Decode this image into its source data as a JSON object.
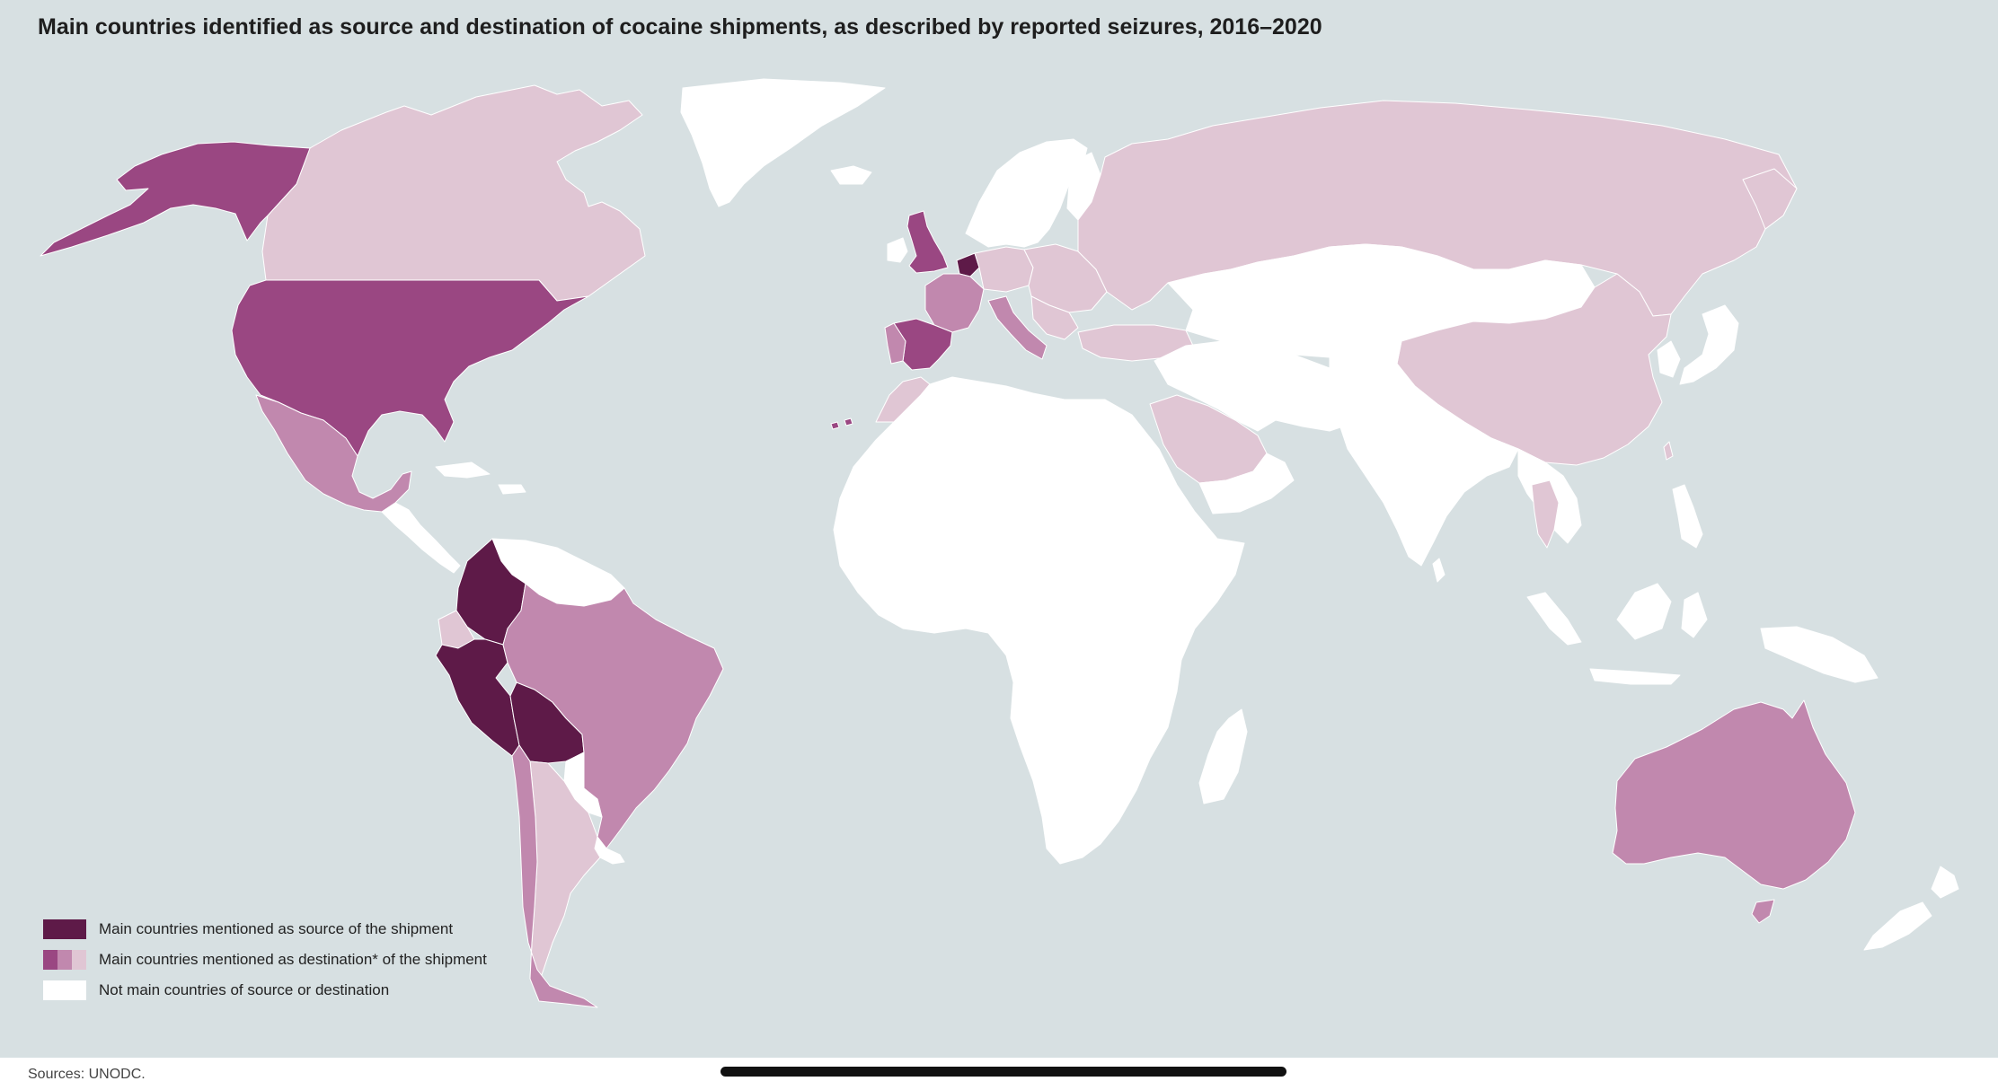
{
  "title": "Main countries identified as source and destination of cocaine shipments, as described by reported seizures, 2016–2020",
  "colors": {
    "ocean": "#d7e0e2",
    "source": "#5e1a48",
    "destination_high": "#9a4782",
    "destination_mid": "#c188ae",
    "destination_low": "#e0c6d4",
    "neither": "#ffffff",
    "landmass_base": "#fdfbfc"
  },
  "regions": [
    {
      "name": "Alaska (USA)",
      "category": "destination_high"
    },
    {
      "name": "Canada",
      "category": "destination_low"
    },
    {
      "name": "United States",
      "category": "destination_high"
    },
    {
      "name": "Mexico",
      "category": "destination_mid"
    },
    {
      "name": "Greenland",
      "category": "neither"
    },
    {
      "name": "Central America",
      "category": "neither"
    },
    {
      "name": "Colombia",
      "category": "source"
    },
    {
      "name": "Peru",
      "category": "source"
    },
    {
      "name": "Bolivia",
      "category": "source"
    },
    {
      "name": "Venezuela and Guianas",
      "category": "neither"
    },
    {
      "name": "Ecuador",
      "category": "destination_low"
    },
    {
      "name": "Brazil",
      "category": "destination_mid"
    },
    {
      "name": "Paraguay",
      "category": "neither"
    },
    {
      "name": "Uruguay",
      "category": "neither"
    },
    {
      "name": "Argentina",
      "category": "destination_low"
    },
    {
      "name": "Chile",
      "category": "destination_mid"
    },
    {
      "name": "United Kingdom",
      "category": "destination_high"
    },
    {
      "name": "Ireland",
      "category": "neither"
    },
    {
      "name": "Netherlands / Belgium",
      "category": "source"
    },
    {
      "name": "France",
      "category": "destination_mid"
    },
    {
      "name": "Spain",
      "category": "destination_high"
    },
    {
      "name": "Portugal",
      "category": "destination_mid"
    },
    {
      "name": "Italy",
      "category": "destination_mid"
    },
    {
      "name": "Germany",
      "category": "destination_low"
    },
    {
      "name": "Scandinavia",
      "category": "neither"
    },
    {
      "name": "Eastern Europe",
      "category": "destination_low"
    },
    {
      "name": "Russia",
      "category": "destination_low"
    },
    {
      "name": "Turkey",
      "category": "destination_low"
    },
    {
      "name": "Morocco",
      "category": "destination_low"
    },
    {
      "name": "Africa",
      "category": "neither"
    },
    {
      "name": "Middle East",
      "category": "neither"
    },
    {
      "name": "Saudi Arabia",
      "category": "destination_low"
    },
    {
      "name": "Central Asia / Mongolia",
      "category": "neither"
    },
    {
      "name": "India",
      "category": "neither"
    },
    {
      "name": "China",
      "category": "destination_low"
    },
    {
      "name": "Japan",
      "category": "neither"
    },
    {
      "name": "Thailand",
      "category": "destination_low"
    },
    {
      "name": "Indonesia",
      "category": "neither"
    },
    {
      "name": "Papua New Guinea",
      "category": "neither"
    },
    {
      "name": "Australia",
      "category": "destination_mid"
    },
    {
      "name": "New Zealand",
      "category": "neither"
    }
  ],
  "legend": [
    {
      "label": "Main countries mentioned as source of the shipment",
      "swatches": [
        "#5e1a48",
        "#5e1a48",
        "#5e1a48"
      ]
    },
    {
      "label": "Main countries mentioned as destination* of the shipment",
      "swatches": [
        "#9a4782",
        "#c188ae",
        "#e0c6d4"
      ]
    },
    {
      "label": "Not main countries of source or destination",
      "swatches": [
        "#ffffff",
        "#ffffff",
        "#ffffff"
      ]
    }
  ],
  "source_note": "Sources: UNODC."
}
